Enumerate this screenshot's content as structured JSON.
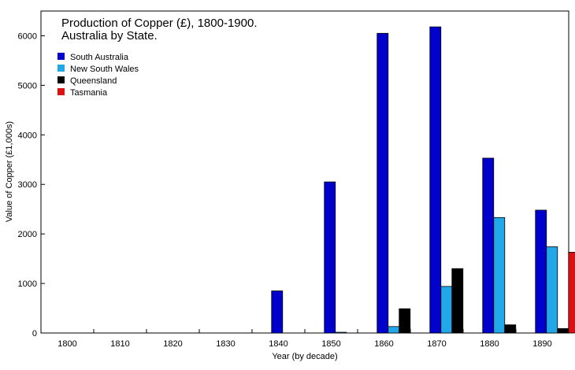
{
  "chart_data": {
    "type": "bar",
    "title": "Production of Copper (£), 1800-1900.",
    "subtitle": "Australia by State.",
    "xlabel": "Year (by decade)",
    "ylabel": "Value of Copper (£1,000s)",
    "ylim": [
      0,
      6500
    ],
    "yticks": [
      0,
      1000,
      2000,
      3000,
      4000,
      5000,
      6000
    ],
    "grid": false,
    "legend_position": "top-left",
    "categories": [
      "1800",
      "1810",
      "1820",
      "1830",
      "1840",
      "1850",
      "1860",
      "1870",
      "1880",
      "1890"
    ],
    "series": [
      {
        "name": "South Australia",
        "color": "#0000cc",
        "values": [
          0,
          0,
          0,
          0,
          850,
          3050,
          6050,
          6180,
          3530,
          2480
        ]
      },
      {
        "name": "New South Wales",
        "color": "#22a8e8",
        "values": [
          0,
          0,
          0,
          0,
          0,
          15,
          130,
          940,
          2330,
          1740
        ]
      },
      {
        "name": "Queensland",
        "color": "#000000",
        "values": [
          0,
          0,
          0,
          0,
          0,
          0,
          490,
          1300,
          165,
          90
        ]
      },
      {
        "name": "Tasmania",
        "color": "#dd1111",
        "values": [
          0,
          0,
          0,
          0,
          0,
          0,
          0,
          0,
          0,
          1630
        ]
      }
    ]
  }
}
